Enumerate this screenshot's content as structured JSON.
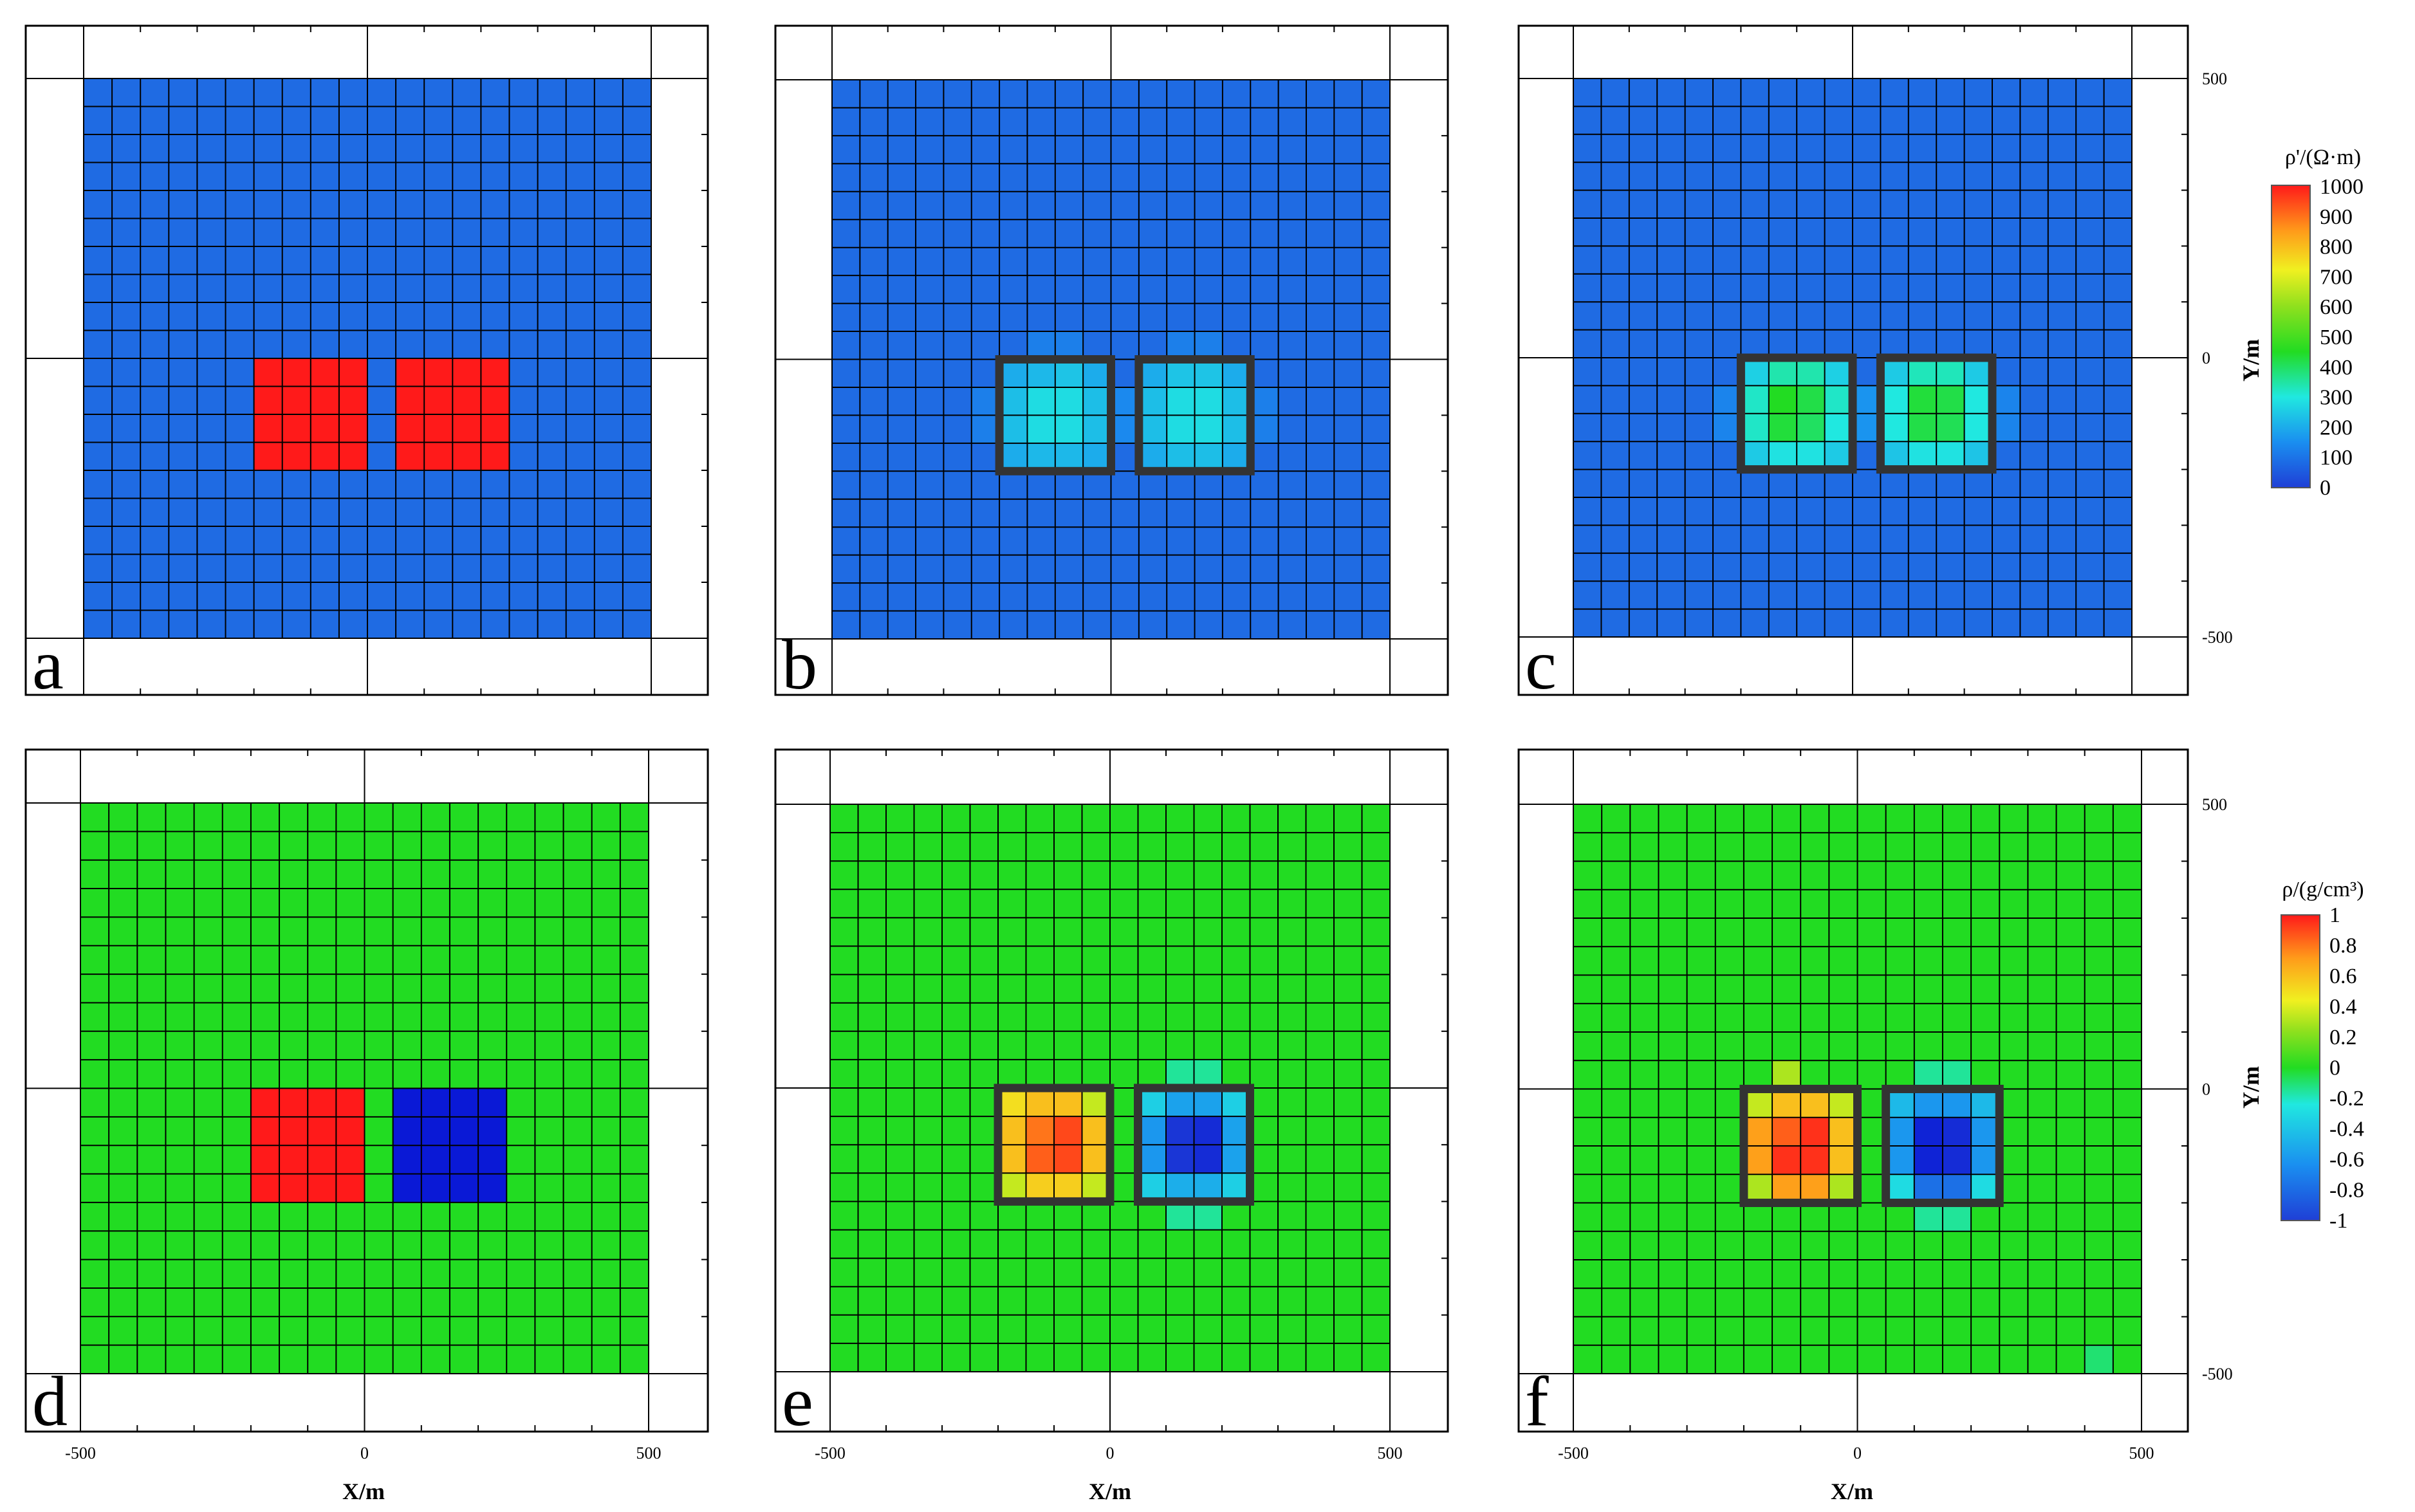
{
  "chart_data": [
    {
      "id": "a",
      "type": "heatmap",
      "panel_label": "a",
      "colorbar": "resistivity"
    },
    {
      "id": "b",
      "type": "heatmap",
      "panel_label": "b",
      "colorbar": "resistivity"
    },
    {
      "id": "c",
      "type": "heatmap",
      "panel_label": "c",
      "colorbar": "resistivity"
    },
    {
      "id": "d",
      "type": "heatmap",
      "panel_label": "d",
      "colorbar": "density"
    },
    {
      "id": "e",
      "type": "heatmap",
      "panel_label": "e",
      "colorbar": "density"
    },
    {
      "id": "f",
      "type": "heatmap",
      "panel_label": "f",
      "colorbar": "density"
    }
  ],
  "grid": {
    "x_range": [
      -500,
      500
    ],
    "y_range": [
      -500,
      500
    ],
    "cell_size_m": 50
  },
  "x_axis": {
    "label": "X/m",
    "ticks": [
      "-500",
      "0",
      "500"
    ]
  },
  "y_axis": {
    "label": "Y/m",
    "ticks": [
      "500",
      "0",
      "-500"
    ]
  },
  "colorbars": {
    "resistivity": {
      "title": "ρ'/(Ω·m)",
      "range": [
        0,
        1000
      ],
      "ticks": [
        "1000",
        "900",
        "800",
        "700",
        "600",
        "500",
        "400",
        "300",
        "200",
        "100",
        "0"
      ]
    },
    "density": {
      "title": "ρ/(g/cm³)",
      "range": [
        -1,
        1
      ],
      "ticks": [
        "1",
        "0.8",
        "0.6",
        "0.4",
        "0.2",
        "0",
        "-0.2",
        "-0.4",
        "-0.6",
        "-0.8",
        "-1"
      ]
    }
  },
  "colors": {
    "background_resistivity": "#1f6be3",
    "background_density": "#22dc22",
    "high": "#ff1a1a",
    "low": "#0a19d6",
    "box_outline": "#333333",
    "grid_line": "#000000"
  }
}
